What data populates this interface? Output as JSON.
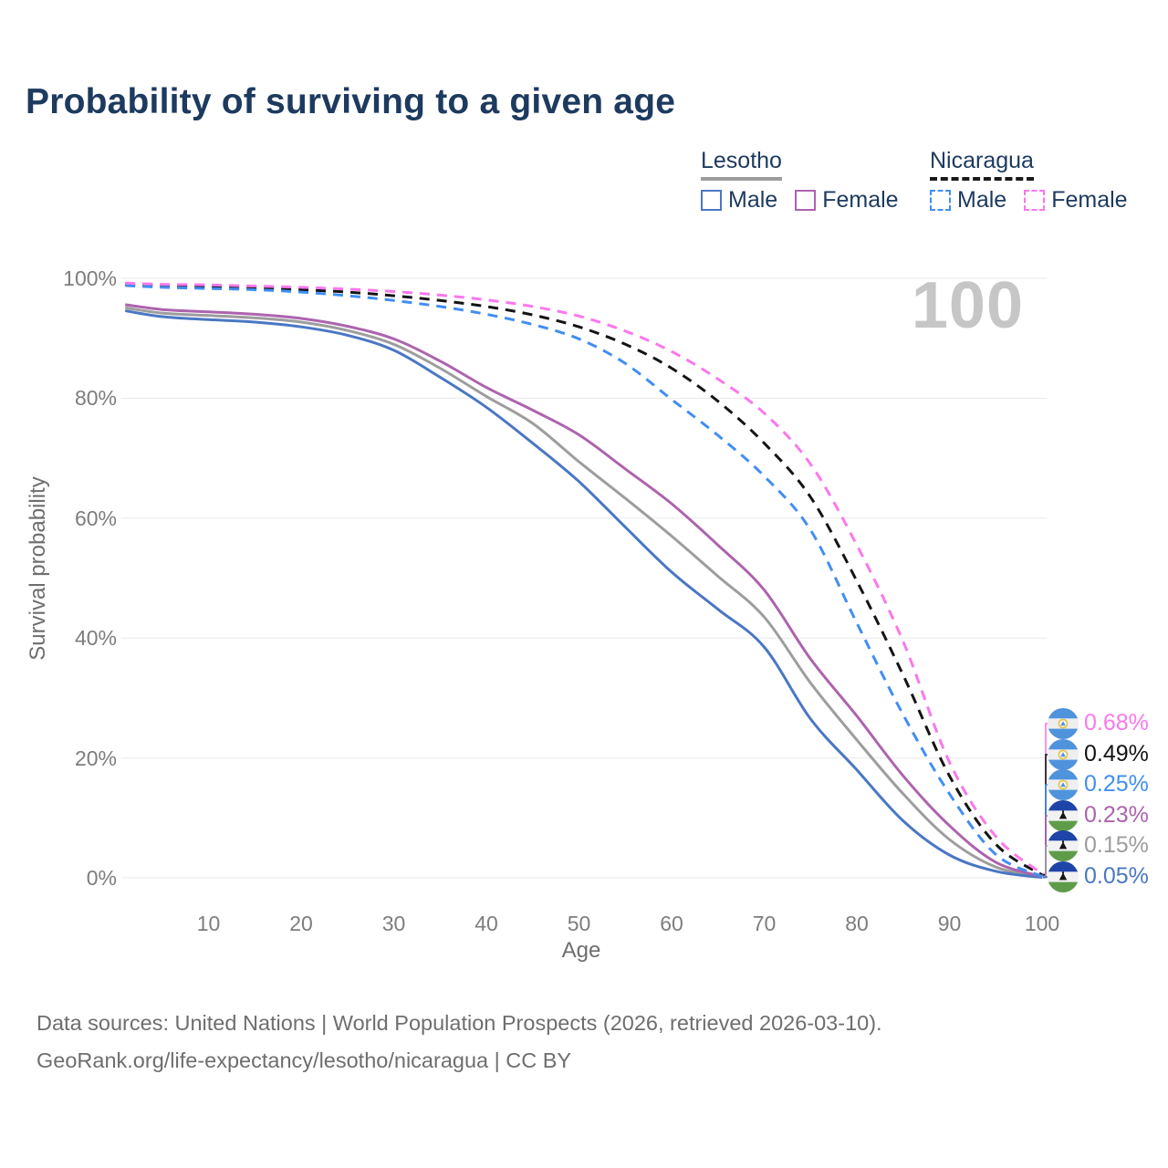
{
  "chart_data": {
    "type": "line",
    "title": "Probability of surviving to a given age",
    "xlabel": "Age",
    "ylabel": "Survival probability",
    "xlim": [
      0,
      100
    ],
    "ylim": [
      0,
      100
    ],
    "grid": "horizontal",
    "legend_position": "top-right",
    "age_cursor_label": "100",
    "x_ticks": [
      10,
      20,
      30,
      40,
      50,
      60,
      70,
      80,
      90,
      100
    ],
    "y_ticks": [
      {
        "value": 0,
        "label": "0%"
      },
      {
        "value": 20,
        "label": "20%"
      },
      {
        "value": 40,
        "label": "40%"
      },
      {
        "value": 60,
        "label": "60%"
      },
      {
        "value": 80,
        "label": "80%"
      },
      {
        "value": 100,
        "label": "100%"
      }
    ],
    "x": [
      1,
      5,
      10,
      15,
      20,
      25,
      30,
      35,
      40,
      45,
      50,
      55,
      60,
      65,
      70,
      75,
      80,
      85,
      90,
      95,
      100
    ],
    "series": [
      {
        "name": "Lesotho Both sexes",
        "country": "Lesotho",
        "sex": "Both",
        "color": "#9d9d9d",
        "dash": "solid",
        "values": [
          95.1,
          94.2,
          93.8,
          93.4,
          92.7,
          91.3,
          89.0,
          85.0,
          80.3,
          75.8,
          69.4,
          63.3,
          57.0,
          50.3,
          43.5,
          32.5,
          23.0,
          14.0,
          6.4,
          1.8,
          0.15
        ]
      },
      {
        "name": "Lesotho Male",
        "country": "Lesotho",
        "sex": "Male",
        "color": "#4a77c4",
        "dash": "solid",
        "values": [
          94.6,
          93.6,
          93.1,
          92.7,
          91.9,
          90.5,
          88.0,
          83.5,
          78.5,
          72.5,
          66.1,
          58.5,
          51.0,
          44.8,
          38.5,
          26.5,
          18.0,
          9.5,
          3.8,
          1.1,
          0.05
        ]
      },
      {
        "name": "Lesotho Female",
        "country": "Lesotho",
        "sex": "Female",
        "color": "#ad63ae",
        "dash": "solid",
        "values": [
          95.6,
          94.8,
          94.4,
          94.0,
          93.3,
          92.0,
          89.9,
          86.2,
          81.8,
          78.0,
          73.9,
          68.2,
          62.4,
          55.5,
          48.0,
          36.5,
          27.0,
          17.0,
          8.7,
          2.6,
          0.23
        ]
      },
      {
        "name": "Nicaragua Both sexes",
        "country": "Nicaragua",
        "sex": "Both",
        "color": "#141414",
        "dash": "dashed",
        "values": [
          99.0,
          98.8,
          98.6,
          98.4,
          98.1,
          97.7,
          97.1,
          96.3,
          95.3,
          93.9,
          91.9,
          89.0,
          85.0,
          79.5,
          72.5,
          63.5,
          49.5,
          33.8,
          17.0,
          5.6,
          0.49
        ]
      },
      {
        "name": "Nicaragua Male",
        "country": "Nicaragua",
        "sex": "Male",
        "color": "#418ef2",
        "dash": "dashed",
        "values": [
          98.8,
          98.5,
          98.3,
          98.1,
          97.7,
          97.1,
          96.3,
          95.3,
          94.0,
          92.3,
          89.9,
          85.8,
          79.8,
          73.8,
          67.0,
          58.0,
          42.5,
          27.2,
          14.0,
          3.9,
          0.25
        ]
      },
      {
        "name": "Nicaragua Female",
        "country": "Nicaragua",
        "sex": "Female",
        "color": "#fa78ec",
        "dash": "dashed",
        "values": [
          99.2,
          99.0,
          98.9,
          98.7,
          98.5,
          98.2,
          97.8,
          97.2,
          96.4,
          95.3,
          93.7,
          91.2,
          87.8,
          83.2,
          77.5,
          69.0,
          55.5,
          39.4,
          19.3,
          6.9,
          0.68
        ]
      }
    ],
    "end_labels": [
      {
        "label": "0.68%",
        "series": "Nicaragua Female",
        "flag": "nicaragua",
        "color": "#fa78ec"
      },
      {
        "label": "0.49%",
        "series": "Nicaragua Both sexes",
        "flag": "nicaragua",
        "color": "#141414"
      },
      {
        "label": "0.25%",
        "series": "Nicaragua Male",
        "flag": "nicaragua",
        "color": "#418ef2"
      },
      {
        "label": "0.23%",
        "series": "Lesotho Female",
        "flag": "lesotho",
        "color": "#ad63ae"
      },
      {
        "label": "0.15%",
        "series": "Lesotho Both sexes",
        "flag": "lesotho",
        "color": "#9d9d9d"
      },
      {
        "label": "0.05%",
        "series": "Lesotho Male",
        "flag": "lesotho",
        "color": "#4a77c4"
      }
    ]
  },
  "legend": {
    "groups": [
      {
        "country": "Lesotho",
        "line_style": "solid",
        "underline_color": "#9d9d9d",
        "items": [
          {
            "label": "Male",
            "color": "#4a77c4"
          },
          {
            "label": "Female",
            "color": "#ad63ae"
          }
        ]
      },
      {
        "country": "Nicaragua",
        "line_style": "dashed",
        "underline_color": "#1a1a1a",
        "items": [
          {
            "label": "Male",
            "color": "#418ef2"
          },
          {
            "label": "Female",
            "color": "#fa78ec"
          }
        ]
      }
    ]
  },
  "footer": {
    "line1": "Data sources: United Nations | World Population Prospects (2026, retrieved 2026-03-10).",
    "line2": "GeoRank.org/life-expectancy/lesotho/nicaragua | CC BY"
  }
}
